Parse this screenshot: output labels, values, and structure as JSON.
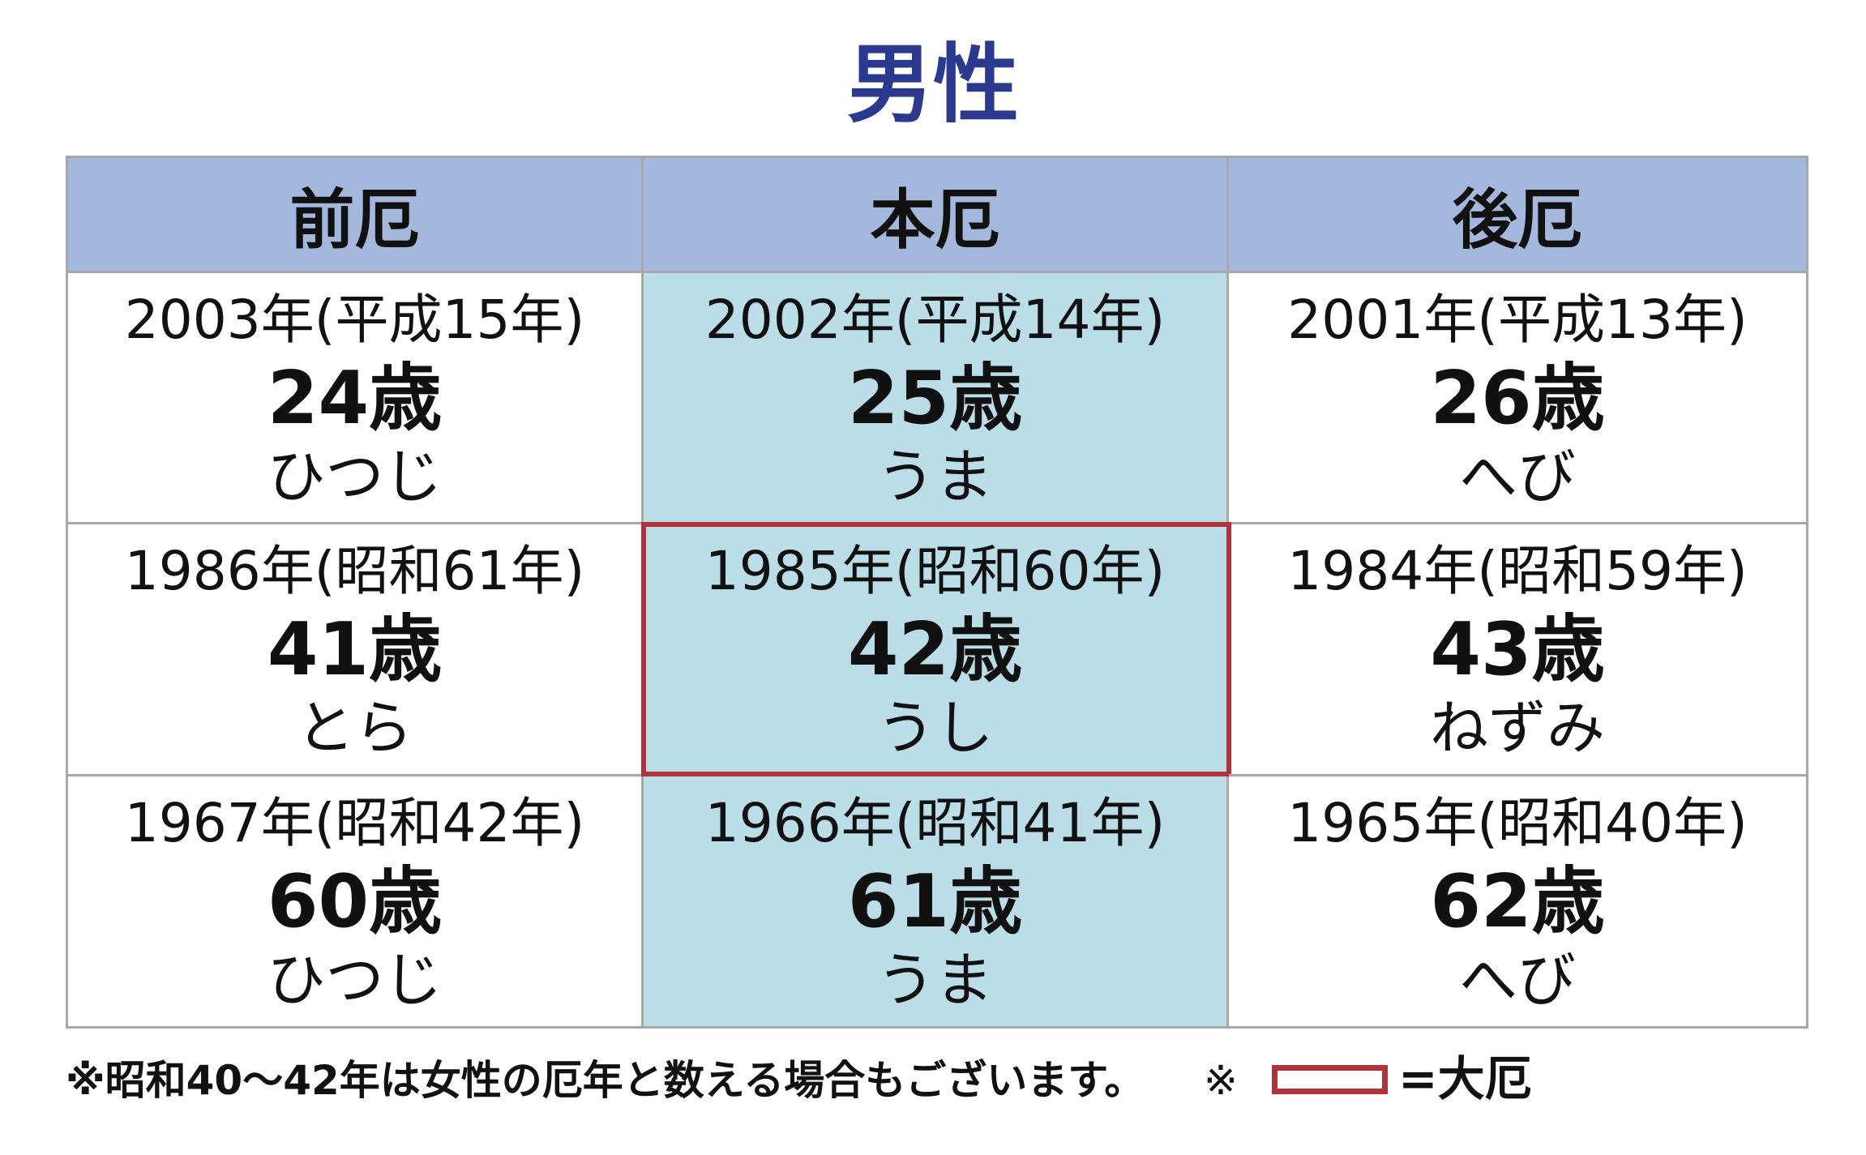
{
  "title": "男性",
  "table": {
    "headers": [
      "前厄",
      "本厄",
      "後厄"
    ],
    "rows": [
      [
        {
          "year": "2003年(平成15年)",
          "age": "24歳",
          "zodiac": "ひつじ"
        },
        {
          "year": "2002年(平成14年)",
          "age": "25歳",
          "zodiac": "うま"
        },
        {
          "year": "2001年(平成13年)",
          "age": "26歳",
          "zodiac": "へび"
        }
      ],
      [
        {
          "year": "1986年(昭和61年)",
          "age": "41歳",
          "zodiac": "とら"
        },
        {
          "year": "1985年(昭和60年)",
          "age": "42歳",
          "zodiac": "うし"
        },
        {
          "year": "1984年(昭和59年)",
          "age": "43歳",
          "zodiac": "ねずみ"
        }
      ],
      [
        {
          "year": "1967年(昭和42年)",
          "age": "60歳",
          "zodiac": "ひつじ"
        },
        {
          "year": "1966年(昭和41年)",
          "age": "61歳",
          "zodiac": "うま"
        },
        {
          "year": "1965年(昭和40年)",
          "age": "62歳",
          "zodiac": "へび"
        }
      ]
    ]
  },
  "footnote": "※昭和40～42年は女性の厄年と数える場合もございます。",
  "legend": {
    "mark": "※",
    "label": "=大厄"
  }
}
